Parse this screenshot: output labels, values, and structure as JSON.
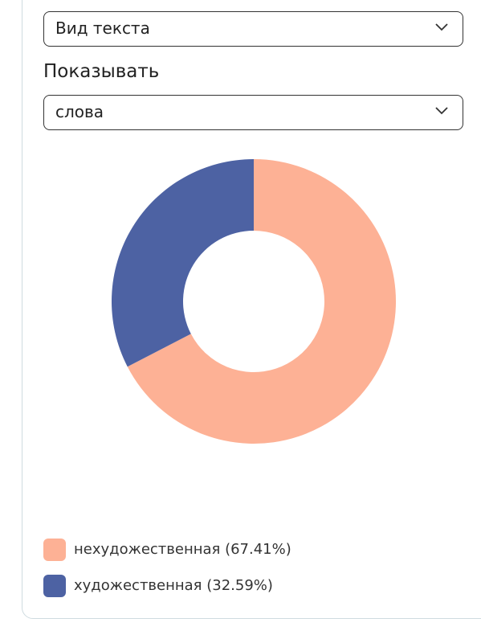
{
  "form": {
    "select_1": "Вид текста",
    "show_label": "Показывать",
    "select_2": "слова"
  },
  "chart_data": {
    "type": "pie",
    "categories": [
      "нехудожественная (67.41%)",
      "художественная (32.59%)"
    ],
    "values": [
      67.41,
      32.59
    ],
    "colors": [
      "#fdb195",
      "#4d62a3"
    ]
  }
}
